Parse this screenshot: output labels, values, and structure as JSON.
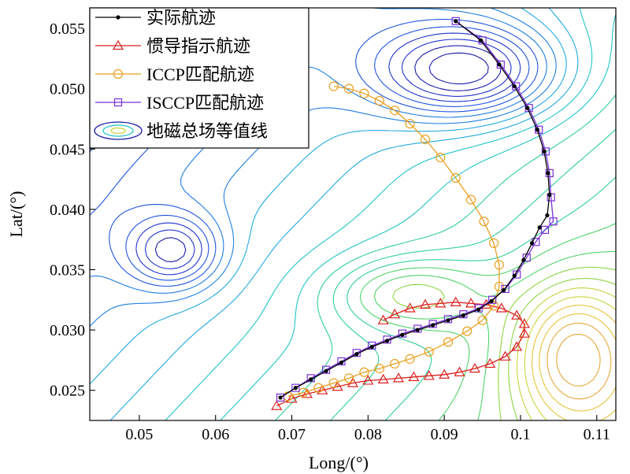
{
  "chart_data": {
    "type": "line",
    "xlabel": "Long/(°)",
    "ylabel": "Lat/(°)",
    "xlim": [
      0.0435,
      0.1125
    ],
    "ylim": [
      0.0225,
      0.0567
    ],
    "xticks": [
      0.05,
      0.06,
      0.07,
      0.08,
      0.09,
      0.1,
      0.11
    ],
    "xtick_labels": [
      "0.05",
      "0.06",
      "0.07",
      "0.08",
      "0.09",
      "0.1",
      "0.11"
    ],
    "yticks": [
      0.025,
      0.03,
      0.035,
      0.04,
      0.045,
      0.05,
      0.055
    ],
    "ytick_labels": [
      "0.025",
      "0.030",
      "0.035",
      "0.040",
      "0.045",
      "0.050",
      "0.055"
    ],
    "grid": false,
    "legend_position": "top-left",
    "contour_colors": [
      "#1a1aa8",
      "#2233cc",
      "#1f55dd",
      "#1f7fe0",
      "#22a9e0",
      "#22c4c8",
      "#2ecf9a",
      "#4fd468",
      "#8ed544",
      "#c9d43e",
      "#e8c23a",
      "#e8a83a"
    ],
    "series": [
      {
        "name": "实际航迹",
        "color": "#000000",
        "marker": "dot",
        "points": [
          [
            0.0685,
            0.0244
          ],
          [
            0.0705,
            0.0252
          ],
          [
            0.0725,
            0.0259
          ],
          [
            0.0745,
            0.0266
          ],
          [
            0.0765,
            0.0273
          ],
          [
            0.0785,
            0.028
          ],
          [
            0.0805,
            0.0286
          ],
          [
            0.0825,
            0.0291
          ],
          [
            0.0845,
            0.0296
          ],
          [
            0.0865,
            0.03
          ],
          [
            0.0885,
            0.0304
          ],
          [
            0.0905,
            0.0308
          ],
          [
            0.0925,
            0.0312
          ],
          [
            0.0945,
            0.0317
          ],
          [
            0.0962,
            0.0324
          ],
          [
            0.0978,
            0.0333
          ],
          [
            0.0992,
            0.0345
          ],
          [
            0.1004,
            0.0358
          ],
          [
            0.1015,
            0.0372
          ],
          [
            0.1025,
            0.0385
          ],
          [
            0.1035,
            0.0395
          ],
          [
            0.1038,
            0.0412
          ],
          [
            0.1036,
            0.043
          ],
          [
            0.1031,
            0.0448
          ],
          [
            0.1022,
            0.0466
          ],
          [
            0.1009,
            0.0484
          ],
          [
            0.0992,
            0.0502
          ],
          [
            0.0972,
            0.052
          ],
          [
            0.0948,
            0.054
          ],
          [
            0.0915,
            0.0556
          ]
        ]
      },
      {
        "name": "惯导指示航迹",
        "color": "#dd2020",
        "marker": "triangle",
        "points": [
          [
            0.068,
            0.0237
          ],
          [
            0.07,
            0.0243
          ],
          [
            0.072,
            0.0247
          ],
          [
            0.074,
            0.025
          ],
          [
            0.076,
            0.0253
          ],
          [
            0.078,
            0.0256
          ],
          [
            0.08,
            0.0258
          ],
          [
            0.082,
            0.0259
          ],
          [
            0.084,
            0.026
          ],
          [
            0.086,
            0.0261
          ],
          [
            0.088,
            0.0262
          ],
          [
            0.09,
            0.0263
          ],
          [
            0.092,
            0.0265
          ],
          [
            0.094,
            0.0268
          ],
          [
            0.096,
            0.0272
          ],
          [
            0.098,
            0.0278
          ],
          [
            0.0995,
            0.0286
          ],
          [
            0.1005,
            0.0297
          ],
          [
            0.1005,
            0.0305
          ],
          [
            0.0995,
            0.0312
          ],
          [
            0.0975,
            0.0318
          ],
          [
            0.0955,
            0.0321
          ],
          [
            0.0935,
            0.0322
          ],
          [
            0.0915,
            0.0323
          ],
          [
            0.0895,
            0.0322
          ],
          [
            0.0875,
            0.0321
          ],
          [
            0.0855,
            0.0318
          ],
          [
            0.0835,
            0.0313
          ],
          [
            0.082,
            0.0308
          ]
        ]
      },
      {
        "name": "ICCP匹配航迹",
        "color": "#e8a020",
        "marker": "circle",
        "points": [
          [
            0.0755,
            0.0502
          ],
          [
            0.0775,
            0.05
          ],
          [
            0.0795,
            0.0496
          ],
          [
            0.0815,
            0.049
          ],
          [
            0.0835,
            0.0482
          ],
          [
            0.0855,
            0.0471
          ],
          [
            0.0875,
            0.0458
          ],
          [
            0.0895,
            0.0443
          ],
          [
            0.0915,
            0.0426
          ],
          [
            0.0935,
            0.0408
          ],
          [
            0.0952,
            0.039
          ],
          [
            0.0965,
            0.0372
          ],
          [
            0.0972,
            0.0354
          ],
          [
            0.0972,
            0.0336
          ],
          [
            0.0965,
            0.032
          ],
          [
            0.095,
            0.0308
          ],
          [
            0.093,
            0.0299
          ],
          [
            0.0905,
            0.029
          ],
          [
            0.088,
            0.0282
          ],
          [
            0.0855,
            0.0276
          ],
          [
            0.0835,
            0.0272
          ],
          [
            0.0815,
            0.0268
          ],
          [
            0.0795,
            0.0265
          ],
          [
            0.0775,
            0.026
          ],
          [
            0.0755,
            0.0256
          ],
          [
            0.0735,
            0.0252
          ],
          [
            0.0715,
            0.0248
          ],
          [
            0.0695,
            0.0245
          ]
        ]
      },
      {
        "name": "ISCCP匹配航迹",
        "color": "#7a30d8",
        "marker": "square",
        "points": [
          [
            0.0685,
            0.0244
          ],
          [
            0.0705,
            0.0252
          ],
          [
            0.0725,
            0.026
          ],
          [
            0.0745,
            0.0267
          ],
          [
            0.0765,
            0.0274
          ],
          [
            0.0785,
            0.0281
          ],
          [
            0.0805,
            0.0287
          ],
          [
            0.0825,
            0.0292
          ],
          [
            0.0845,
            0.0297
          ],
          [
            0.0865,
            0.0301
          ],
          [
            0.0885,
            0.0305
          ],
          [
            0.0905,
            0.0309
          ],
          [
            0.0925,
            0.0313
          ],
          [
            0.0945,
            0.0318
          ],
          [
            0.0963,
            0.0325
          ],
          [
            0.098,
            0.0334
          ],
          [
            0.0995,
            0.0346
          ],
          [
            0.1008,
            0.036
          ],
          [
            0.102,
            0.0373
          ],
          [
            0.1032,
            0.0383
          ],
          [
            0.1043,
            0.039
          ],
          [
            0.104,
            0.041
          ],
          [
            0.1038,
            0.043
          ],
          [
            0.1033,
            0.0448
          ],
          [
            0.1024,
            0.0466
          ],
          [
            0.1011,
            0.0484
          ],
          [
            0.0994,
            0.0502
          ],
          [
            0.0974,
            0.052
          ],
          [
            0.095,
            0.054
          ],
          [
            0.0915,
            0.0556
          ]
        ]
      }
    ],
    "legend": [
      {
        "label": "实际航迹",
        "marker": "dot",
        "color": "#000000"
      },
      {
        "label": "惯导指示航迹",
        "marker": "triangle",
        "color": "#dd2020"
      },
      {
        "label": "ICCP匹配航迹",
        "marker": "circle",
        "color": "#e8a020"
      },
      {
        "label": "ISCCP匹配航迹",
        "marker": "square",
        "color": "#7a30d8"
      },
      {
        "label": "地磁总场等值线",
        "marker": "contour",
        "color": "#1a1aa8"
      }
    ]
  }
}
